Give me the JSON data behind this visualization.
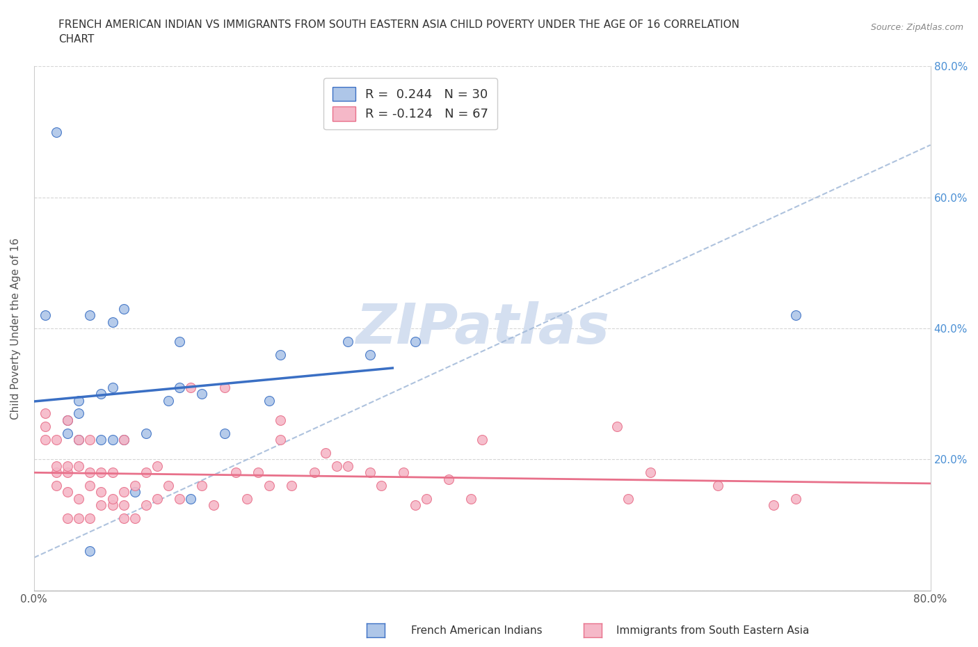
{
  "title": "FRENCH AMERICAN INDIAN VS IMMIGRANTS FROM SOUTH EASTERN ASIA CHILD POVERTY UNDER THE AGE OF 16 CORRELATION\nCHART",
  "source": "Source: ZipAtlas.com",
  "ylabel": "Child Poverty Under the Age of 16",
  "xlabel": "",
  "legend1_label": "R =  0.244   N = 30",
  "legend2_label": "R = -0.124   N = 67",
  "series1_color": "#aec6e8",
  "series2_color": "#f5b8c8",
  "line1_color": "#3a6fc4",
  "line2_color": "#e8708a",
  "dash_line_color": "#a0b8d8",
  "watermark_color": "#d4dff0",
  "background_color": "#ffffff",
  "xlim": [
    0,
    0.8
  ],
  "ylim": [
    0,
    0.8
  ],
  "xtick_positions": [
    0.0,
    0.1,
    0.2,
    0.3,
    0.4,
    0.5,
    0.6,
    0.7,
    0.8
  ],
  "ytick_positions": [
    0.0,
    0.2,
    0.4,
    0.6,
    0.8
  ],
  "right_yticklabels": [
    "",
    "20.0%",
    "40.0%",
    "60.0%",
    "80.0%"
  ],
  "xticklabels_show": [
    "0.0%",
    "",
    "",
    "",
    "",
    "",
    "",
    "",
    "80.0%"
  ],
  "series1_x": [
    0.02,
    0.03,
    0.03,
    0.04,
    0.04,
    0.04,
    0.05,
    0.06,
    0.06,
    0.07,
    0.07,
    0.07,
    0.08,
    0.09,
    0.1,
    0.12,
    0.13,
    0.13,
    0.14,
    0.15,
    0.17,
    0.21,
    0.22,
    0.28,
    0.3,
    0.34,
    0.01,
    0.05,
    0.08,
    0.68
  ],
  "series1_y": [
    0.7,
    0.24,
    0.26,
    0.23,
    0.27,
    0.29,
    0.42,
    0.23,
    0.3,
    0.23,
    0.31,
    0.41,
    0.43,
    0.15,
    0.24,
    0.29,
    0.31,
    0.38,
    0.14,
    0.3,
    0.24,
    0.29,
    0.36,
    0.38,
    0.36,
    0.38,
    0.42,
    0.06,
    0.23,
    0.42
  ],
  "series2_x": [
    0.01,
    0.01,
    0.01,
    0.02,
    0.02,
    0.02,
    0.02,
    0.03,
    0.03,
    0.03,
    0.03,
    0.03,
    0.04,
    0.04,
    0.04,
    0.04,
    0.05,
    0.05,
    0.05,
    0.05,
    0.06,
    0.06,
    0.06,
    0.07,
    0.07,
    0.07,
    0.08,
    0.08,
    0.08,
    0.08,
    0.09,
    0.09,
    0.1,
    0.1,
    0.11,
    0.11,
    0.12,
    0.13,
    0.14,
    0.15,
    0.16,
    0.17,
    0.18,
    0.19,
    0.2,
    0.21,
    0.22,
    0.22,
    0.23,
    0.25,
    0.26,
    0.27,
    0.28,
    0.3,
    0.31,
    0.33,
    0.34,
    0.35,
    0.37,
    0.39,
    0.4,
    0.53,
    0.55,
    0.61,
    0.66,
    0.68,
    0.52
  ],
  "series2_y": [
    0.23,
    0.25,
    0.27,
    0.16,
    0.18,
    0.19,
    0.23,
    0.11,
    0.15,
    0.18,
    0.19,
    0.26,
    0.11,
    0.14,
    0.19,
    0.23,
    0.11,
    0.16,
    0.18,
    0.23,
    0.13,
    0.15,
    0.18,
    0.13,
    0.14,
    0.18,
    0.11,
    0.13,
    0.15,
    0.23,
    0.11,
    0.16,
    0.13,
    0.18,
    0.14,
    0.19,
    0.16,
    0.14,
    0.31,
    0.16,
    0.13,
    0.31,
    0.18,
    0.14,
    0.18,
    0.16,
    0.23,
    0.26,
    0.16,
    0.18,
    0.21,
    0.19,
    0.19,
    0.18,
    0.16,
    0.18,
    0.13,
    0.14,
    0.17,
    0.14,
    0.23,
    0.14,
    0.18,
    0.16,
    0.13,
    0.14,
    0.25
  ],
  "R1": 0.244,
  "R2": -0.124,
  "N1": 30,
  "N2": 67,
  "title_fontsize": 11,
  "axis_label_fontsize": 11,
  "tick_fontsize": 11,
  "legend_fontsize": 13
}
